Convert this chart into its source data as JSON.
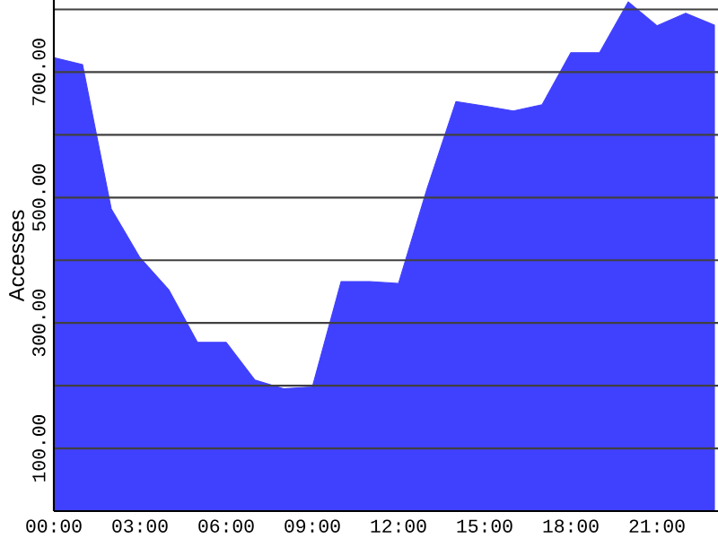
{
  "chart_data": {
    "type": "area",
    "ylabel": "Accesses",
    "x": [
      0,
      1,
      2,
      3,
      4,
      5,
      6,
      7,
      8,
      9,
      10,
      11,
      12,
      13,
      14,
      15,
      16,
      17,
      18,
      19,
      20,
      21,
      22,
      23
    ],
    "series": [
      {
        "color": "#4040ff",
        "values": [
          723,
          712,
          482,
          404,
          353,
          269,
          269,
          209,
          195,
          198,
          366,
          366,
          363,
          515,
          653,
          646,
          638,
          648,
          731,
          731,
          812,
          774,
          794,
          775
        ]
      }
    ],
    "xlim": [
      0,
      23.125
    ],
    "ylim": [
      0,
      815
    ],
    "xticks": [
      {
        "value": 0,
        "label": "00:00"
      },
      {
        "value": 3,
        "label": "03:00"
      },
      {
        "value": 6,
        "label": "06:00"
      },
      {
        "value": 9,
        "label": "09:00"
      },
      {
        "value": 12,
        "label": "12:00"
      },
      {
        "value": 15,
        "label": "15:00"
      },
      {
        "value": 18,
        "label": "18:00"
      },
      {
        "value": 21,
        "label": "21:00"
      }
    ],
    "yticks": [
      {
        "value": 100,
        "label": "100.00"
      },
      {
        "value": 200,
        "label": null
      },
      {
        "value": 300,
        "label": "300.00"
      },
      {
        "value": 400,
        "label": null
      },
      {
        "value": 500,
        "label": "500.00"
      },
      {
        "value": 600,
        "label": null
      },
      {
        "value": 700,
        "label": "700.00"
      },
      {
        "value": 800,
        "label": null
      }
    ],
    "grid": "y"
  }
}
